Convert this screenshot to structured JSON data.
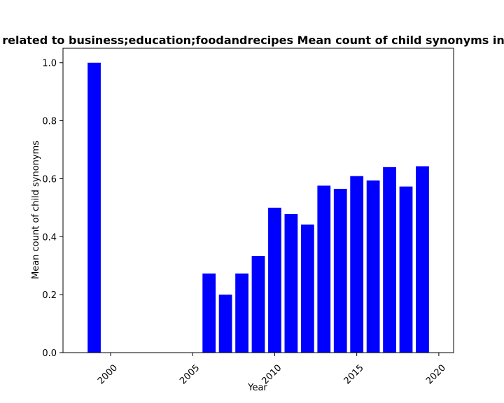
{
  "chart_data": {
    "type": "bar",
    "title": "related to business;education;foodandrecipes Mean count of child synonyms in",
    "xlabel": "Year",
    "ylabel": "Mean count of child synonyms",
    "x": [
      1999,
      2006,
      2007,
      2008,
      2009,
      2010,
      2011,
      2012,
      2013,
      2014,
      2015,
      2016,
      2017,
      2018,
      2019
    ],
    "values": [
      1.0,
      0.273,
      0.2,
      0.273,
      0.333,
      0.5,
      0.478,
      0.442,
      0.576,
      0.565,
      0.609,
      0.594,
      0.64,
      0.573,
      0.643
    ],
    "xlim": [
      1997.1,
      2020.9
    ],
    "ylim": [
      0,
      1.05
    ],
    "xticks": [
      "2000",
      "2005",
      "2010",
      "2015",
      "2020"
    ],
    "yticks": [
      "0.0",
      "0.2",
      "0.4",
      "0.6",
      "0.8",
      "1.0"
    ],
    "bar_color": "#0000ff",
    "grid": false,
    "legend": "none"
  }
}
